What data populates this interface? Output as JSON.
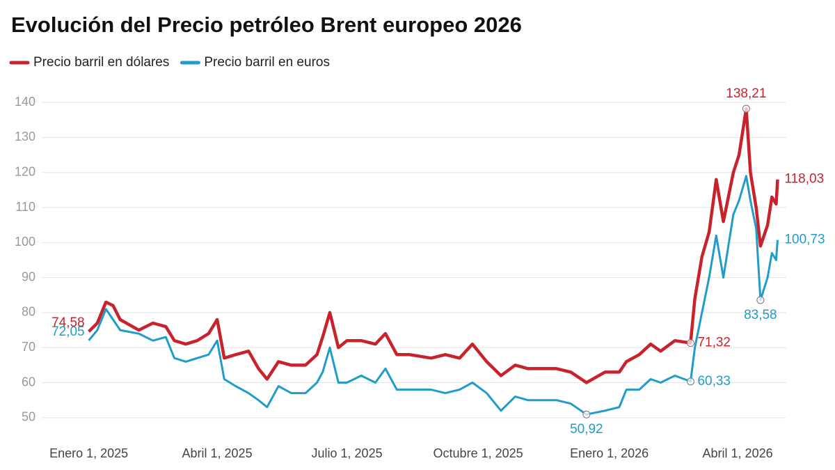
{
  "chart_data": {
    "type": "line",
    "title": "Evolución del Precio petróleo Brent europeo 2026",
    "x": [
      "2025-01-01",
      "2025-01-07",
      "2025-01-13",
      "2025-01-18",
      "2025-01-23",
      "2025-02-05",
      "2025-02-15",
      "2025-02-24",
      "2025-03-02",
      "2025-03-10",
      "2025-03-18",
      "2025-03-26",
      "2025-04-01",
      "2025-04-06",
      "2025-04-14",
      "2025-04-23",
      "2025-04-30",
      "2025-05-06",
      "2025-05-14",
      "2025-05-23",
      "2025-06-02",
      "2025-06-10",
      "2025-06-14",
      "2025-06-19",
      "2025-06-25",
      "2025-07-01",
      "2025-07-11",
      "2025-07-21",
      "2025-07-28",
      "2025-08-05",
      "2025-08-14",
      "2025-08-29",
      "2025-09-08",
      "2025-09-18",
      "2025-09-27",
      "2025-10-07",
      "2025-10-17",
      "2025-10-27",
      "2025-11-05",
      "2025-11-15",
      "2025-11-25",
      "2025-12-05",
      "2025-12-16",
      "2025-12-29",
      "2026-01-08",
      "2026-01-13",
      "2026-01-22",
      "2026-01-30",
      "2026-02-06",
      "2026-02-16",
      "2026-02-27",
      "2026-03-02",
      "2026-03-07",
      "2026-03-12",
      "2026-03-17",
      "2026-03-22",
      "2026-03-29",
      "2026-04-02",
      "2026-04-07",
      "2026-04-10",
      "2026-04-14",
      "2026-04-17",
      "2026-04-22",
      "2026-04-25",
      "2026-04-28",
      "2026-04-29"
    ],
    "series": [
      {
        "name": "Precio barril en dólares",
        "color": "#c8232c",
        "values": [
          74.58,
          77,
          83,
          82,
          78,
          75,
          77,
          76,
          72,
          71,
          72,
          74,
          78,
          67,
          68,
          69,
          64,
          61,
          66,
          65,
          65,
          68,
          73,
          80,
          70,
          72,
          72,
          71,
          74,
          68,
          68,
          67,
          68,
          67,
          71,
          66,
          62,
          65,
          64,
          64,
          64,
          63,
          60,
          63,
          63,
          66,
          68,
          71,
          69,
          72,
          71.32,
          84,
          96,
          103,
          118,
          106,
          120,
          125,
          138.21,
          120,
          110,
          99,
          105,
          113,
          111,
          118.03
        ],
        "value_labels": [
          "74,58",
          null,
          null,
          null,
          null,
          null,
          null,
          null,
          null,
          null,
          null,
          null,
          null,
          null,
          null,
          null,
          null,
          null,
          null,
          null,
          null,
          null,
          null,
          null,
          null,
          null,
          null,
          null,
          null,
          null,
          null,
          null,
          null,
          null,
          null,
          null,
          null,
          null,
          null,
          null,
          null,
          null,
          null,
          null,
          null,
          null,
          null,
          null,
          null,
          null,
          "71,32",
          null,
          null,
          null,
          null,
          null,
          null,
          null,
          "138,21",
          null,
          null,
          null,
          null,
          null,
          null,
          "118,03"
        ]
      },
      {
        "name": "Precio barril en euros",
        "color": "#1f9cc9",
        "values": [
          72.05,
          75,
          81,
          78,
          75,
          74,
          72,
          73,
          67,
          66,
          67,
          68,
          72,
          61,
          59,
          57,
          55,
          53,
          59,
          57,
          57,
          60,
          63,
          70,
          60,
          60,
          62,
          60,
          64,
          58,
          58,
          58,
          57,
          58,
          60,
          57,
          52,
          56,
          55,
          55,
          55,
          54,
          50.92,
          52,
          53,
          58,
          58,
          61,
          60,
          62,
          60.33,
          70,
          80,
          90,
          102,
          90,
          108,
          112,
          119,
          112,
          104,
          83.58,
          90,
          97,
          95,
          100.73
        ],
        "value_labels": [
          "72,05",
          null,
          null,
          null,
          null,
          null,
          null,
          null,
          null,
          null,
          null,
          null,
          null,
          null,
          null,
          null,
          null,
          null,
          null,
          null,
          null,
          null,
          null,
          null,
          null,
          null,
          null,
          null,
          null,
          null,
          null,
          null,
          null,
          null,
          null,
          null,
          null,
          null,
          null,
          null,
          null,
          null,
          "50,92",
          null,
          null,
          null,
          null,
          null,
          null,
          null,
          "60,33",
          null,
          null,
          null,
          null,
          null,
          null,
          null,
          null,
          null,
          null,
          "83,58",
          null,
          null,
          null,
          "100,73"
        ]
      }
    ],
    "xlim": [
      "2024-11-29",
      "2026-05-10"
    ],
    "xticks": [
      {
        "value": "2025-01-01",
        "label": "Enero 1, 2025"
      },
      {
        "value": "2025-04-01",
        "label": "Abril 1, 2025"
      },
      {
        "value": "2025-07-01",
        "label": "Julio 1, 2025"
      },
      {
        "value": "2025-10-01",
        "label": "Octubre 1, 2025"
      },
      {
        "value": "2026-01-01",
        "label": "Enero 1, 2026"
      },
      {
        "value": "2026-04-01",
        "label": "Abril 1, 2026"
      }
    ],
    "ylim": [
      44,
      146
    ],
    "yticks": [
      50,
      60,
      70,
      80,
      90,
      100,
      110,
      120,
      130,
      140
    ],
    "grid": true
  }
}
